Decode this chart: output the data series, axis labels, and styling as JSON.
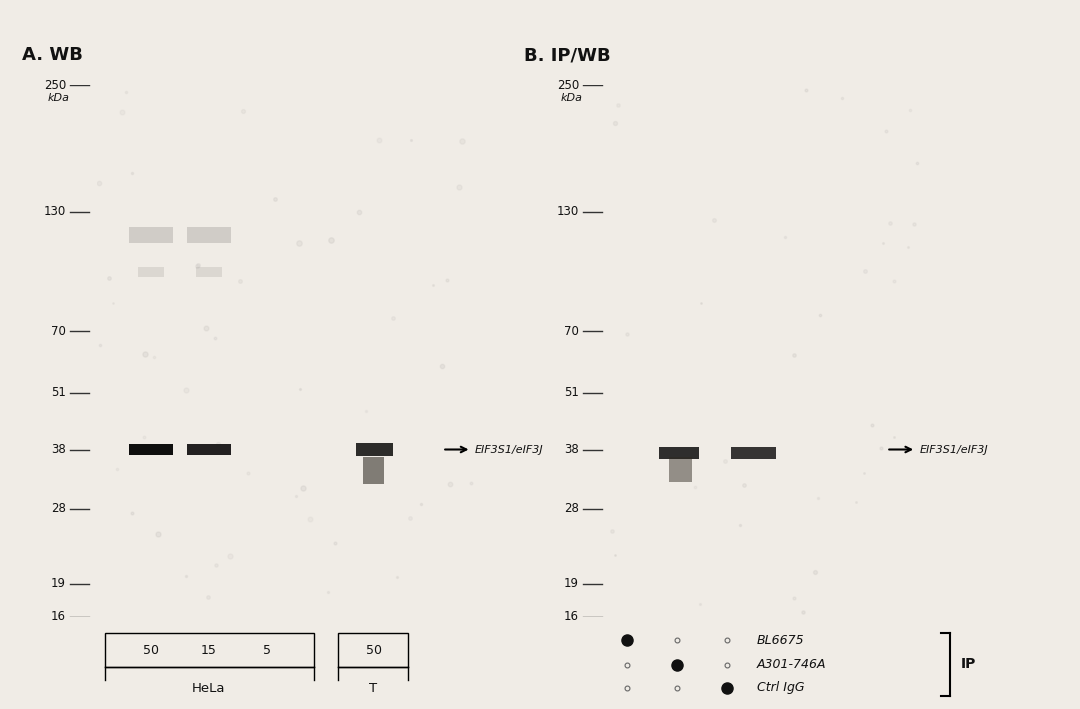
{
  "bg_color": "#e8e4de",
  "panel_bg": "#d4cfc8",
  "title_A": "A. WB",
  "title_B": "B. IP/WB",
  "kda_label": "kDa",
  "mw_markers_A": [
    250,
    130,
    70,
    51,
    38,
    28,
    19,
    16
  ],
  "mw_markers_B": [
    250,
    130,
    70,
    51,
    38,
    28,
    19,
    16
  ],
  "band_label": "EIF3S1/eIF3J",
  "band_kda": 38,
  "panel_A_lanes": [
    "50",
    "15",
    "5",
    "50"
  ],
  "panel_A_group_labels": [
    "HeLa",
    "T"
  ],
  "panel_B_dots": [
    [
      "+",
      "-",
      "-"
    ],
    [
      "-",
      "+",
      "-"
    ],
    [
      "-",
      "-",
      "+"
    ]
  ],
  "panel_B_row_labels": [
    "BL6675",
    "A301-746A",
    "Ctrl IgG"
  ],
  "panel_B_ip_label": "IP",
  "overall_bg": "#f0ece6"
}
